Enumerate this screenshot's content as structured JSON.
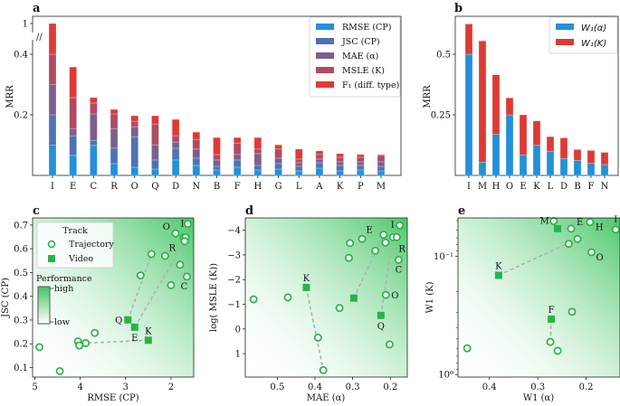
{
  "chart_data": [
    {
      "panel": "a",
      "type": "bar",
      "stacked": true,
      "title": "",
      "xlabel": "",
      "ylabel": "MRR",
      "ylim": [
        0,
        1
      ],
      "y_axis_break": [
        0.4,
        1
      ],
      "yticks": [
        "0.2",
        "0.4",
        "1"
      ],
      "yticks_values": [
        0.2,
        0.4,
        1
      ],
      "legend_position": "top-right",
      "categories": [
        "I",
        "E",
        "C",
        "R",
        "O",
        "Q",
        "D",
        "N",
        "B",
        "F",
        "H",
        "G",
        "L",
        "A",
        "K",
        "P",
        "M"
      ],
      "series": [
        {
          "name": "RMSE (CP)",
          "color": "#2390d8",
          "values": [
            0.1,
            0.066,
            0.099,
            0.039,
            0.027,
            0.021,
            0.051,
            0.033,
            0.018,
            0.027,
            0.018,
            0.021,
            0.015,
            0.024,
            0.015,
            0.018,
            0.015
          ]
        },
        {
          "name": "JSC (CP)",
          "color": "#4f73b2",
          "values": [
            0.1,
            0.065,
            0.017,
            0.051,
            0.101,
            0.03,
            0.039,
            0.024,
            0.012,
            0.024,
            0.015,
            0.018,
            0.015,
            0.018,
            0.018,
            0.015,
            0.015
          ]
        },
        {
          "name": "MAE (α)",
          "color": "#7b5f8e",
          "values": [
            0.1,
            0.024,
            0.087,
            0.065,
            0.033,
            0.05,
            0.02,
            0.03,
            0.021,
            0.018,
            0.039,
            0.018,
            0.012,
            0.012,
            0.012,
            0.012,
            0.015
          ]
        },
        {
          "name": "MSLE (K)",
          "color": "#b04b62",
          "values": [
            0.1,
            0.102,
            0.036,
            0.048,
            0.018,
            0.069,
            0.021,
            0.032,
            0.018,
            0.038,
            0.015,
            0.03,
            0.012,
            0.015,
            0.015,
            0.015,
            0.021
          ]
        },
        {
          "name": "F₁ (diff. type)",
          "color": "#de3a35",
          "values": [
            0.6,
            0.101,
            0.018,
            0.015,
            0.018,
            0.027,
            0.054,
            0.024,
            0.056,
            0.018,
            0.038,
            0.014,
            0.033,
            0.012,
            0.012,
            0.009,
            0.003
          ]
        }
      ]
    },
    {
      "panel": "b",
      "type": "bar",
      "stacked": true,
      "xlabel": "",
      "ylabel": "MRR",
      "ylim": [
        0,
        0.65
      ],
      "yticks": [
        "0.25",
        "0.5"
      ],
      "yticks_values": [
        0.25,
        0.5
      ],
      "legend_position": "top-right",
      "categories": [
        "I",
        "M",
        "H",
        "O",
        "E",
        "K",
        "L",
        "D",
        "B",
        "F",
        "N"
      ],
      "series": [
        {
          "name": "W₁(α)",
          "color": "#2390d8",
          "values": [
            0.5,
            0.055,
            0.17,
            0.25,
            0.085,
            0.125,
            0.1,
            0.07,
            0.062,
            0.05,
            0.045
          ]
        },
        {
          "name": "W₁(K)",
          "color": "#de3a35",
          "values": [
            0.125,
            0.5,
            0.245,
            0.07,
            0.165,
            0.1,
            0.06,
            0.085,
            0.045,
            0.053,
            0.05
          ]
        }
      ]
    },
    {
      "panel": "c",
      "type": "scatter",
      "xlabel": "RMSE (CP)",
      "ylabel": "JSC (CP)",
      "xlim": [
        5.05,
        1.5
      ],
      "ylim": [
        0.06,
        0.73
      ],
      "x_inverted": true,
      "xticks": [
        "5",
        "4",
        "3",
        "2"
      ],
      "xticks_values": [
        5,
        4,
        3,
        2
      ],
      "yticks": [
        "0.1",
        "0.2",
        "0.3",
        "0.4",
        "0.5",
        "0.6",
        "0.7"
      ],
      "yticks_values": [
        0.1,
        0.2,
        0.3,
        0.4,
        0.5,
        0.6,
        0.7
      ],
      "legend": {
        "title": "Track",
        "entries": [
          "Trajectory",
          "Video"
        ],
        "position": "top-left"
      },
      "colorbar": {
        "title": "Performance",
        "high": "high",
        "low": "low"
      },
      "trajectory": [
        {
          "x": 1.63,
          "y": 0.705,
          "label": "I"
        },
        {
          "x": 1.9,
          "y": 0.665,
          "label": "O"
        },
        {
          "x": 1.72,
          "y": 0.648,
          "label": ""
        },
        {
          "x": 1.68,
          "y": 0.648,
          "label": ""
        },
        {
          "x": 1.7,
          "y": 0.632,
          "label": "R"
        },
        {
          "x": 1.65,
          "y": 0.483,
          "label": "C"
        },
        {
          "x": 2.43,
          "y": 0.578,
          "label": ""
        },
        {
          "x": 2.13,
          "y": 0.57,
          "label": ""
        },
        {
          "x": 1.8,
          "y": 0.533,
          "label": ""
        },
        {
          "x": 2.67,
          "y": 0.488,
          "label": ""
        },
        {
          "x": 2.0,
          "y": 0.447,
          "label": ""
        },
        {
          "x": 3.68,
          "y": 0.246,
          "label": ""
        },
        {
          "x": 4.05,
          "y": 0.21,
          "label": ""
        },
        {
          "x": 3.88,
          "y": 0.203,
          "label": ""
        },
        {
          "x": 4.02,
          "y": 0.193,
          "label": ""
        },
        {
          "x": 4.9,
          "y": 0.186,
          "label": ""
        },
        {
          "x": 4.45,
          "y": 0.085,
          "label": ""
        }
      ],
      "video": [
        {
          "x": 2.95,
          "y": 0.301,
          "label": "Q"
        },
        {
          "x": 2.8,
          "y": 0.27,
          "label": "E"
        },
        {
          "x": 2.5,
          "y": 0.215,
          "label": "K"
        }
      ],
      "links": [
        {
          "from": [
            2.95,
            0.301
          ],
          "to": [
            2.43,
            0.578
          ]
        },
        {
          "from": [
            2.8,
            0.27
          ],
          "to": [
            1.7,
            0.632
          ]
        },
        {
          "from": [
            2.5,
            0.215
          ],
          "to": [
            3.88,
            0.203
          ]
        }
      ]
    },
    {
      "panel": "d",
      "type": "scatter",
      "xlabel": "MAE (α)",
      "ylabel": "log( MSLE (K))",
      "xlim": [
        0.585,
        0.155
      ],
      "ylim": [
        1.95,
        -4.5
      ],
      "x_inverted": true,
      "y_inverted": true,
      "xticks": [
        "0.5",
        "0.4",
        "0.3",
        "0.2"
      ],
      "xticks_values": [
        0.5,
        0.4,
        0.3,
        0.2
      ],
      "yticks": [
        "−4",
        "−3",
        "−2",
        "−1",
        "0",
        "1"
      ],
      "yticks_values": [
        -4,
        -3,
        -2,
        -1,
        0,
        1
      ],
      "trajectory": [
        {
          "x": 0.175,
          "y": -4.2,
          "label": "I"
        },
        {
          "x": 0.218,
          "y": -3.82,
          "label": "E"
        },
        {
          "x": 0.193,
          "y": -3.72,
          "label": ""
        },
        {
          "x": 0.183,
          "y": -3.72,
          "label": "R"
        },
        {
          "x": 0.213,
          "y": -3.5,
          "label": ""
        },
        {
          "x": 0.275,
          "y": -3.65,
          "label": ""
        },
        {
          "x": 0.307,
          "y": -3.48,
          "label": ""
        },
        {
          "x": 0.24,
          "y": -3.17,
          "label": ""
        },
        {
          "x": 0.31,
          "y": -2.88,
          "label": ""
        },
        {
          "x": 0.178,
          "y": -2.8,
          "label": "C"
        },
        {
          "x": 0.212,
          "y": -1.38,
          "label": "O"
        },
        {
          "x": 0.563,
          "y": -1.2,
          "label": ""
        },
        {
          "x": 0.472,
          "y": -1.28,
          "label": ""
        },
        {
          "x": 0.335,
          "y": -0.85,
          "label": ""
        },
        {
          "x": 0.392,
          "y": 0.35,
          "label": ""
        },
        {
          "x": 0.202,
          "y": 0.63,
          "label": ""
        },
        {
          "x": 0.378,
          "y": 1.67,
          "label": ""
        }
      ],
      "video": [
        {
          "x": 0.423,
          "y": -1.68,
          "label": "K"
        },
        {
          "x": 0.297,
          "y": -1.25,
          "label": ""
        },
        {
          "x": 0.225,
          "y": -0.55,
          "label": "Q"
        }
      ],
      "links": [
        {
          "from": [
            0.423,
            -1.68
          ],
          "to": [
            0.378,
            1.67
          ]
        },
        {
          "from": [
            0.297,
            -1.25
          ],
          "to": [
            0.218,
            -3.82
          ]
        },
        {
          "from": [
            0.225,
            -0.55
          ],
          "to": [
            0.193,
            -3.72
          ]
        }
      ]
    },
    {
      "panel": "e",
      "type": "scatter",
      "xlabel": "W1 (α)",
      "ylabel": "W1 (K)",
      "xlim": [
        0.465,
        0.13
      ],
      "ylim": [
        1.05,
        0.0475
      ],
      "x_inverted": true,
      "y_inverted": true,
      "y_scale": "log",
      "xticks": [
        "0.4",
        "0.3",
        "0.2"
      ],
      "xticks_values": [
        0.4,
        0.3,
        0.2
      ],
      "yticks": [
        "10⁻¹",
        "10⁰"
      ],
      "yticks_values": [
        0.1,
        1
      ],
      "trajectory": [
        {
          "x": 0.267,
          "y": 0.0505,
          "label": "M"
        },
        {
          "x": 0.231,
          "y": 0.0585,
          "label": "E"
        },
        {
          "x": 0.192,
          "y": 0.0515,
          "label": "H"
        },
        {
          "x": 0.139,
          "y": 0.0595,
          "label": "I"
        },
        {
          "x": 0.218,
          "y": 0.0715,
          "label": ""
        },
        {
          "x": 0.236,
          "y": 0.0785,
          "label": ""
        },
        {
          "x": 0.189,
          "y": 0.0925,
          "label": "O"
        },
        {
          "x": 0.229,
          "y": 0.295,
          "label": ""
        },
        {
          "x": 0.446,
          "y": 0.6,
          "label": ""
        },
        {
          "x": 0.274,
          "y": 0.53,
          "label": ""
        },
        {
          "x": 0.259,
          "y": 0.63,
          "label": ""
        }
      ],
      "video": [
        {
          "x": 0.259,
          "y": 0.0585,
          "label": ""
        },
        {
          "x": 0.381,
          "y": 0.145,
          "label": "K"
        },
        {
          "x": 0.272,
          "y": 0.34,
          "label": "F"
        }
      ],
      "links": [
        {
          "from": [
            0.259,
            0.0585
          ],
          "to": [
            0.231,
            0.0585
          ]
        },
        {
          "from": [
            0.381,
            0.145
          ],
          "to": [
            0.218,
            0.0715
          ]
        },
        {
          "from": [
            0.272,
            0.34
          ],
          "to": [
            0.274,
            0.53
          ]
        }
      ]
    }
  ],
  "panels": {
    "a": "a",
    "b": "b",
    "c": "c",
    "d": "d",
    "e": "e"
  },
  "colors": {
    "trajectory": "#2ab24a",
    "video": "#2ab24a",
    "link": "#b0b0b0",
    "gradient_high": "#3cc45e",
    "gradient_low": "#ffffff"
  },
  "axis_break_mark": "//"
}
